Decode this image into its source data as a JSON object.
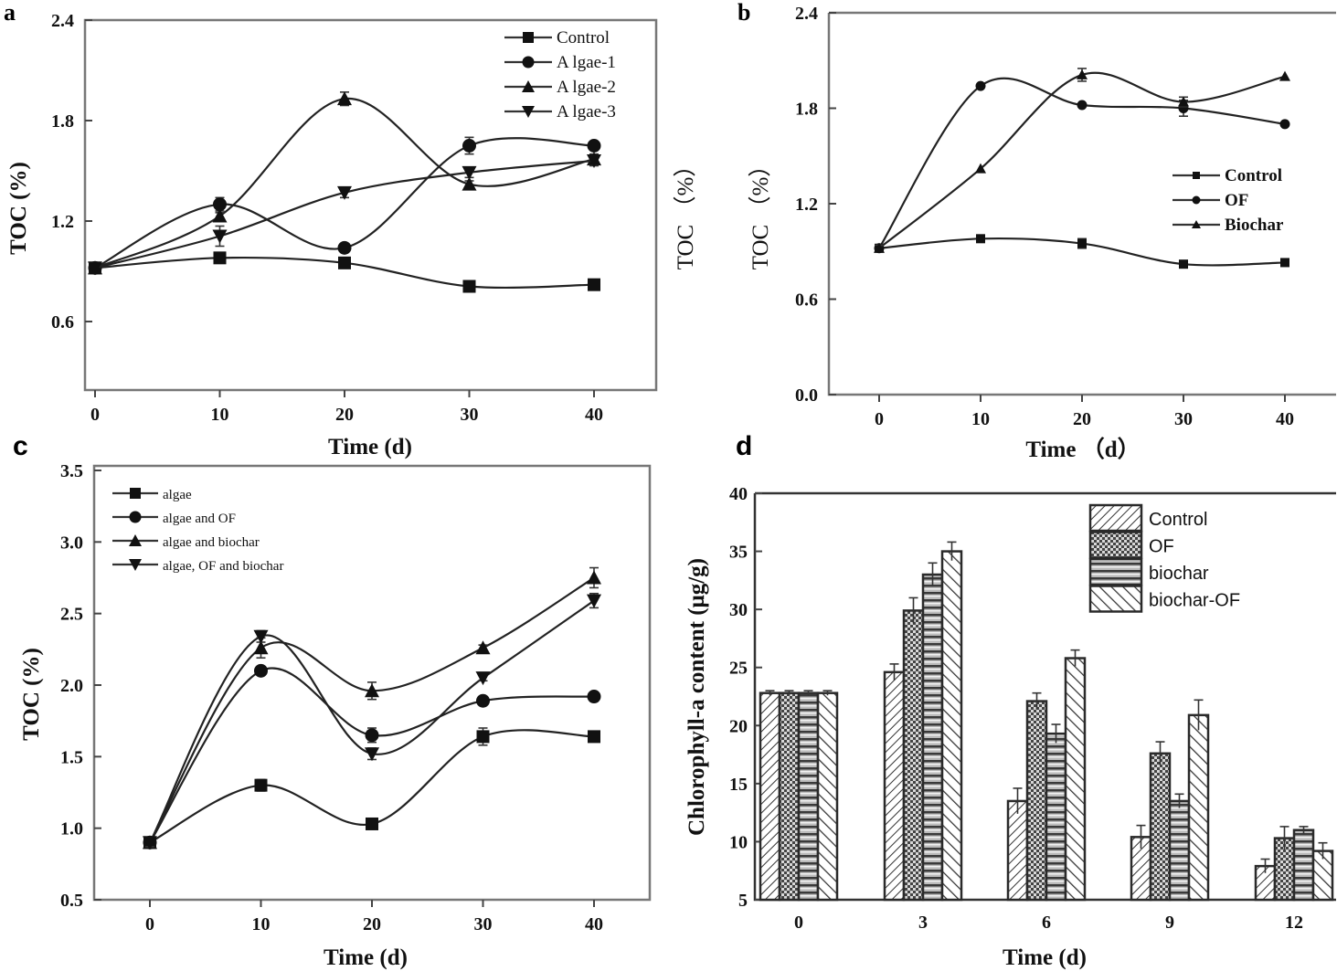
{
  "figure": {
    "panels": [
      "a",
      "b",
      "c",
      "d"
    ]
  },
  "chart_data": [
    {
      "id": "a",
      "panel_label": "a",
      "type": "line",
      "title": "",
      "xlabel": "Time (d)",
      "ylabel": "TOC (%)",
      "x": [
        0,
        10,
        20,
        30,
        40
      ],
      "xticks": [
        "0",
        "10",
        "20",
        "30",
        "40"
      ],
      "yticks": [
        "0.6",
        "1.2",
        "1.8",
        "2.4"
      ],
      "ytick_values": [
        0.6,
        1.2,
        1.8,
        2.4
      ],
      "xlim": [
        -0.8,
        45
      ],
      "ylim": [
        0.19,
        2.4
      ],
      "grid": false,
      "legend_position": "top-right",
      "series": [
        {
          "name": "Control",
          "marker": "square",
          "values": [
            0.92,
            0.98,
            0.95,
            0.81,
            0.82
          ],
          "errors": [
            0.01,
            0.01,
            0.01,
            0.01,
            0.01
          ]
        },
        {
          "name": "A lgae-1",
          "marker": "circle",
          "values": [
            0.92,
            1.3,
            1.04,
            1.65,
            1.65
          ],
          "errors": [
            0.01,
            0.04,
            0.02,
            0.05,
            0.02
          ]
        },
        {
          "name": "A lgae-2",
          "marker": "triangle-up",
          "values": [
            0.92,
            1.23,
            1.93,
            1.42,
            1.57
          ],
          "errors": [
            0.01,
            0.02,
            0.04,
            0.02,
            0.03
          ]
        },
        {
          "name": "A lgae-3",
          "marker": "triangle-down",
          "values": [
            0.92,
            1.11,
            1.37,
            1.49,
            1.56
          ],
          "errors": [
            0.01,
            0.06,
            0.03,
            0.03,
            0.03
          ]
        }
      ]
    },
    {
      "id": "b",
      "panel_label": "b",
      "type": "line",
      "title": "",
      "xlabel": "Time （d）",
      "ylabel": "TOC （%）",
      "ylabel_duplicate": "TOC （%）",
      "x": [
        0,
        10,
        20,
        30,
        40
      ],
      "xticks": [
        "0",
        "10",
        "20",
        "30",
        "40"
      ],
      "yticks": [
        "0.0",
        "0.6",
        "1.2",
        "1.8",
        "2.4"
      ],
      "ytick_values": [
        0.0,
        0.6,
        1.2,
        1.8,
        2.4
      ],
      "xlim": [
        -5,
        45
      ],
      "ylim": [
        0.0,
        2.4
      ],
      "grid": false,
      "legend_position": "center-right",
      "series": [
        {
          "name": "Control",
          "marker": "square",
          "values": [
            0.92,
            0.98,
            0.95,
            0.82,
            0.83
          ],
          "errors": [
            0.02,
            0.01,
            0.03,
            0.01,
            0.01
          ]
        },
        {
          "name": "OF",
          "marker": "circle",
          "values": [
            0.92,
            1.94,
            1.82,
            1.8,
            1.7
          ],
          "errors": [
            0.02,
            0.01,
            0.01,
            0.05,
            0.01
          ]
        },
        {
          "name": "Biochar",
          "marker": "triangle-up",
          "values": [
            0.92,
            1.42,
            2.01,
            1.84,
            2.0
          ],
          "errors": [
            0.02,
            0.01,
            0.04,
            0.03,
            0.01
          ]
        }
      ]
    },
    {
      "id": "c",
      "panel_label": "c",
      "type": "line",
      "title": "",
      "xlabel": "Time (d)",
      "ylabel": "TOC (%)",
      "x": [
        0,
        10,
        20,
        30,
        40
      ],
      "xticks": [
        "0",
        "10",
        "20",
        "30",
        "40"
      ],
      "yticks": [
        "0.5",
        "1.0",
        "1.5",
        "2.0",
        "2.5",
        "3.0",
        "3.5"
      ],
      "ytick_values": [
        0.5,
        1.0,
        1.5,
        2.0,
        2.5,
        3.0,
        3.5
      ],
      "xlim": [
        -5,
        45
      ],
      "ylim": [
        0.5,
        3.5
      ],
      "grid": false,
      "legend_position": "top-left",
      "series": [
        {
          "name": "algae",
          "marker": "square",
          "values": [
            0.9,
            1.3,
            1.03,
            1.64,
            1.64
          ],
          "errors": [
            0.03,
            0.04,
            0.02,
            0.06,
            0.02
          ]
        },
        {
          "name": "algae and OF",
          "marker": "circle",
          "values": [
            0.9,
            2.1,
            1.65,
            1.89,
            1.92
          ],
          "errors": [
            0.03,
            0.03,
            0.05,
            0.02,
            0.02
          ]
        },
        {
          "name": "algae and biochar",
          "marker": "triangle-up",
          "values": [
            0.9,
            2.26,
            1.96,
            2.26,
            2.75
          ],
          "errors": [
            0.03,
            0.07,
            0.06,
            0.02,
            0.07
          ]
        },
        {
          "name": "algae, OF and biochar",
          "marker": "triangle-down",
          "values": [
            0.9,
            2.34,
            1.52,
            2.05,
            2.59
          ],
          "errors": [
            0.03,
            0.04,
            0.04,
            0.02,
            0.05
          ]
        }
      ]
    },
    {
      "id": "d",
      "panel_label": "d",
      "type": "bar",
      "title": "",
      "xlabel": "Time (d)",
      "xlabel_duplicate": "Time （d）",
      "ylabel": "Chlorophyll-a content (μg/g)",
      "categories": [
        "0",
        "3",
        "6",
        "9",
        "12"
      ],
      "yticks": [
        "5",
        "10",
        "15",
        "20",
        "25",
        "30",
        "35",
        "40"
      ],
      "ytick_values": [
        5,
        10,
        15,
        20,
        25,
        30,
        35,
        40
      ],
      "ylim": [
        5,
        40
      ],
      "grid": false,
      "legend_position": "top-right",
      "series": [
        {
          "name": "Control",
          "pattern": "diagonal-up",
          "values": [
            22.8,
            24.6,
            13.5,
            10.4,
            7.9
          ],
          "errors": [
            0.2,
            0.7,
            1.1,
            1.0,
            0.6
          ]
        },
        {
          "name": "OF",
          "pattern": "crosshatch",
          "values": [
            22.8,
            29.9,
            22.1,
            17.6,
            10.3
          ],
          "errors": [
            0.2,
            1.1,
            0.7,
            1.0,
            1.0
          ]
        },
        {
          "name": "biochar",
          "pattern": "horizontal",
          "values": [
            22.8,
            33.0,
            19.3,
            13.5,
            11.0
          ],
          "errors": [
            0.2,
            1.0,
            0.8,
            0.6,
            0.3
          ]
        },
        {
          "name": "biochar-OF",
          "pattern": "diagonal-down",
          "values": [
            22.8,
            35.0,
            25.8,
            20.9,
            9.2
          ],
          "errors": [
            0.2,
            0.8,
            0.7,
            1.3,
            0.7
          ]
        }
      ]
    }
  ]
}
